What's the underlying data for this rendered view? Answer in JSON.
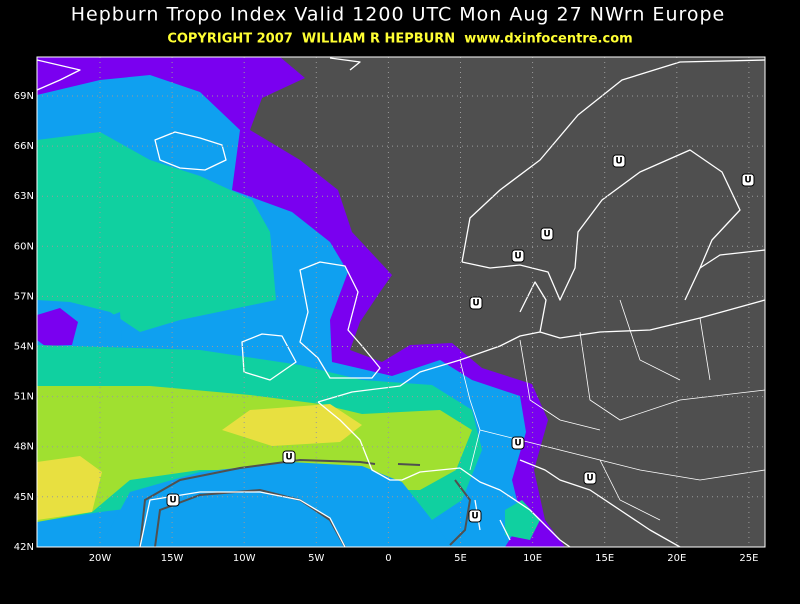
{
  "header": {
    "title": "Hepburn Tropo Index Valid 1200 UTC Mon Aug 27 NWrn Europe",
    "subtitle": "COPYRIGHT 2007  WILLIAM R HEPBURN  www.dxinfocentre.com"
  },
  "map": {
    "lat_labels": [
      "69N",
      "66N",
      "63N",
      "60N",
      "57N",
      "54N",
      "51N",
      "48N",
      "45N",
      "42N"
    ],
    "lon_labels": [
      "20W",
      "15W",
      "10W",
      "5W",
      "0",
      "5E",
      "10E",
      "15E",
      "20E",
      "25E"
    ],
    "markers": [
      "U",
      "U",
      "U",
      "U",
      "U",
      "U",
      "U",
      "U",
      "U",
      "U"
    ]
  }
}
